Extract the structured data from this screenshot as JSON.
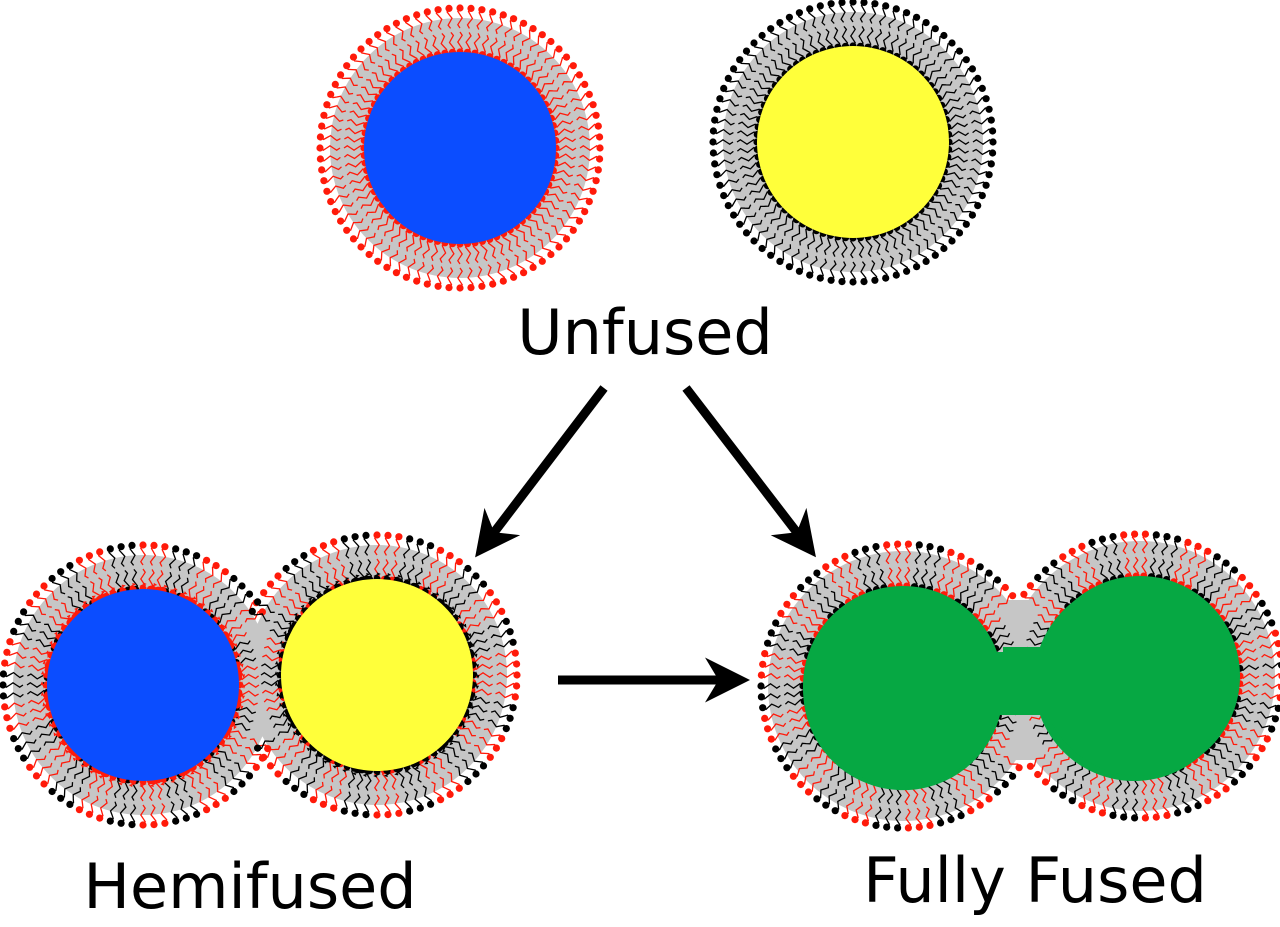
{
  "labels": {
    "unfused": "Unfused",
    "hemifused": "Hemifused",
    "fully_fused": "Fully Fused"
  },
  "colors": {
    "lipid_red": "#ff1a0a",
    "lipid_black": "#000000",
    "shell_gray": "#c6c6c6",
    "lumen_blue": "#0b4dff",
    "lumen_yellow": "#ffff3a",
    "lumen_green": "#06a843",
    "arrow": "#000000"
  }
}
